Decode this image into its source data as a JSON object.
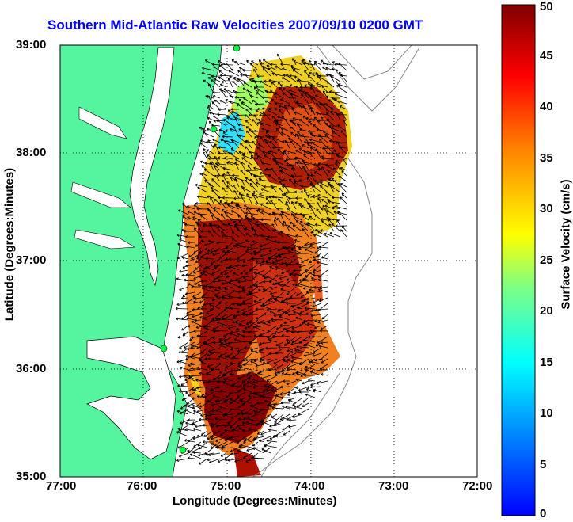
{
  "title": "Southern Mid-Atlantic Raw Velocities 2007/09/10 0200 GMT",
  "xlabel": "Longitude (Degrees:Minutes)",
  "ylabel": "Latitude (Degrees:Minutes)",
  "colorbar_label": "Surface Velocity (cm/s)",
  "x_ticks": [
    "77:00",
    "76:00",
    "75:00",
    "74:00",
    "73:00",
    "72:00"
  ],
  "y_ticks": [
    "39:00",
    "38:00",
    "37:00",
    "36:00",
    "35:00"
  ],
  "colorbar_ticks": [
    "0",
    "5",
    "10",
    "15",
    "20",
    "25",
    "30",
    "35",
    "40",
    "45",
    "50"
  ],
  "colors": {
    "land": "#55f5a0",
    "title": "#0000ff",
    "grid": "#000000"
  },
  "chart_data": {
    "type": "heatmap",
    "title": "Southern Mid-Atlantic Raw Velocities 2007/09/10 0200 GMT",
    "xlabel": "Longitude (Degrees:Minutes)",
    "ylabel": "Latitude (Degrees:Minutes)",
    "xlim": [
      -77,
      -72
    ],
    "ylim": [
      35,
      39
    ],
    "colorbar": {
      "label": "Surface Velocity (cm/s)",
      "range": [
        0,
        50
      ]
    },
    "grid": true
  }
}
